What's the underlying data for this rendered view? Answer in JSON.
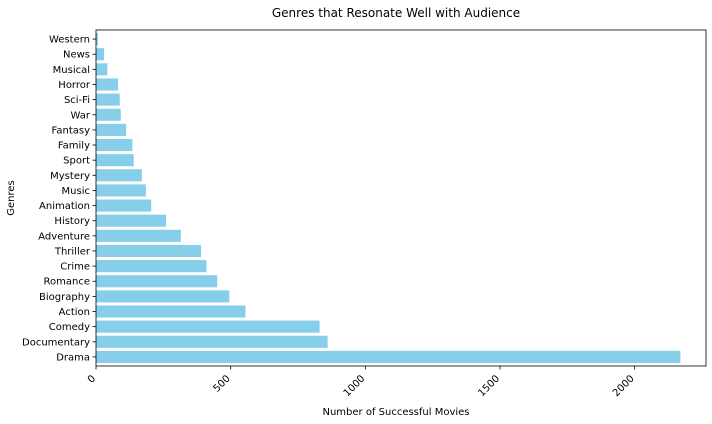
{
  "chart_data": {
    "type": "bar",
    "orientation": "horizontal",
    "title": "Genres that Resonate Well with Audience",
    "xlabel": "Number of Successful Movies",
    "ylabel": "Genres",
    "categories": [
      "Drama",
      "Documentary",
      "Comedy",
      "Action",
      "Biography",
      "Romance",
      "Crime",
      "Thriller",
      "Adventure",
      "History",
      "Animation",
      "Music",
      "Mystery",
      "Sport",
      "Family",
      "Fantasy",
      "War",
      "Sci-Fi",
      "Horror",
      "Musical",
      "News",
      "Western"
    ],
    "values": [
      2170,
      860,
      830,
      555,
      495,
      450,
      410,
      390,
      315,
      260,
      205,
      185,
      170,
      140,
      135,
      112,
      92,
      88,
      82,
      42,
      30,
      7
    ],
    "xlim": [
      0,
      2265
    ],
    "xticks": [
      {
        "value": 0,
        "label": "0"
      },
      {
        "value": 500,
        "label": "500"
      },
      {
        "value": 1000,
        "label": "1000"
      },
      {
        "value": 1500,
        "label": "1500"
      },
      {
        "value": 2000,
        "label": "2000"
      }
    ],
    "bar_color": "#87ceeb",
    "grid": false,
    "legend": "none"
  }
}
